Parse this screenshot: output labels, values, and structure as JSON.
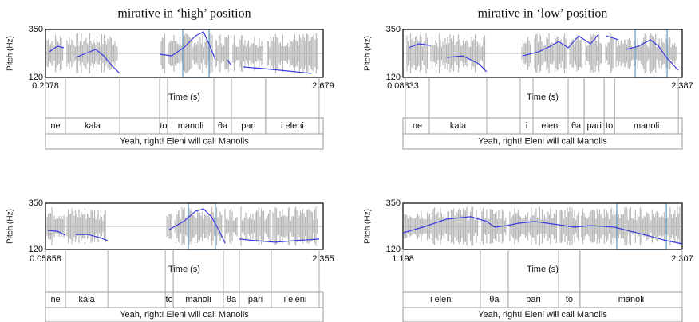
{
  "chart_data": [
    {
      "type": "line",
      "title": "mirative in ‘high’ position",
      "ylabel": "Pitch (Hz)",
      "xlabel": "Time (s)",
      "xlim": [
        0.2078,
        2.679
      ],
      "xticks": [
        0.2078,
        2.679
      ],
      "ylim": [
        120,
        350
      ],
      "yticks": [
        120,
        350
      ],
      "series": [
        {
          "color": "#3a3ae0",
          "x": [
            0.243,
            0.314,
            0.371,
            null,
            0.478,
            0.584,
            0.655,
            0.726,
            0.797,
            0.868,
            null,
            1.223,
            1.33,
            1.436,
            1.543,
            1.614,
            1.663,
            1.72,
            null,
            1.827,
            1.862,
            null,
            1.969,
            2.146,
            2.359,
            2.572
          ],
          "values": [
            243,
            270,
            262,
            null,
            216,
            239,
            254,
            223,
            177,
            139,
            null,
            231,
            223,
            262,
            319,
            338,
            281,
            204,
            null,
            204,
            177,
            null,
            170,
            162,
            151,
            139
          ]
        }
      ],
      "highlight": [
        1.429,
        1.664
      ],
      "words": [
        {
          "label": "ne",
          "start": 0.208,
          "end": 0.385
        },
        {
          "label": "kala",
          "start": 0.385,
          "end": 0.868
        },
        {
          "label": "to",
          "start": 1.223,
          "end": 1.294
        },
        {
          "label": "manoli",
          "start": 1.294,
          "end": 1.706
        },
        {
          "label": "θa",
          "start": 1.706,
          "end": 1.862
        },
        {
          "label": "pari",
          "start": 1.862,
          "end": 2.167
        },
        {
          "label": "i eleni",
          "start": 2.167,
          "end": 2.643
        }
      ],
      "sentence": "Yeah, right! Eleni will call Manolis"
    },
    {
      "type": "line",
      "title": "mirative in ‘low’ position",
      "ylabel": "Pitch (Hz)",
      "xlabel": "Time (s)",
      "xlim": [
        0.08833,
        2.387
      ],
      "xticks": [
        0.08833,
        2.387
      ],
      "ylim": [
        120,
        350
      ],
      "yticks": [
        120,
        350
      ],
      "series": [
        {
          "color": "#3a3ae0",
          "x": [
            0.134,
            0.22,
            0.318,
            null,
            0.45,
            0.581,
            0.712,
            0.778,
            null,
            1.074,
            1.205,
            1.304,
            1.37,
            1.448,
            1.534,
            1.633,
            1.698,
            null,
            1.764,
            1.862,
            null,
            1.928,
            2.027,
            2.125,
            2.191,
            2.257,
            2.355
          ],
          "values": [
            262,
            281,
            273,
            null,
            216,
            223,
            185,
            147,
            null,
            223,
            243,
            270,
            292,
            262,
            319,
            281,
            327,
            null,
            319,
            300,
            null,
            254,
            270,
            300,
            270,
            216,
            154
          ]
        }
      ],
      "highlight": [
        2.0,
        2.263
      ],
      "words": [
        {
          "label": "ne",
          "start": 0.108,
          "end": 0.305
        },
        {
          "label": "kala",
          "start": 0.305,
          "end": 0.778
        },
        {
          "label": "i",
          "start": 1.054,
          "end": 1.159
        },
        {
          "label": "eleni",
          "start": 1.159,
          "end": 1.448
        },
        {
          "label": "θa",
          "start": 1.448,
          "end": 1.58
        },
        {
          "label": "pari",
          "start": 1.58,
          "end": 1.744
        },
        {
          "label": "to",
          "start": 1.744,
          "end": 1.83
        },
        {
          "label": "manoli",
          "start": 1.83,
          "end": 2.355
        }
      ],
      "sentence": "Yeah, right! Eleni will call Manolis"
    },
    {
      "type": "line",
      "ylabel": "Pitch (Hz)",
      "xlabel": "Time (s)",
      "xlim": [
        0.05858,
        2.355
      ],
      "xticks": [
        0.05858,
        2.355
      ],
      "ylim": [
        120,
        350
      ],
      "yticks": [
        120,
        350
      ],
      "series": [
        {
          "color": "#3a3ae0",
          "x": [
            0.078,
            0.158,
            0.223,
            null,
            0.309,
            0.408,
            0.507,
            0.573,
            null,
            1.082,
            1.2,
            1.299,
            1.365,
            1.431,
            1.497,
            1.543,
            null,
            1.662,
            1.794,
            1.959,
            2.124,
            2.322
          ],
          "values": [
            215,
            211,
            191,
            null,
            195,
            195,
            179,
            164,
            null,
            219,
            259,
            310,
            322,
            283,
            211,
            152,
            null,
            172,
            164,
            156,
            164,
            172
          ]
        }
      ],
      "highlight": [
        1.24,
        1.464
      ],
      "words": [
        {
          "label": "ne",
          "start": 0.059,
          "end": 0.224
        },
        {
          "label": "kala",
          "start": 0.224,
          "end": 0.574
        },
        {
          "label": "to",
          "start": 1.049,
          "end": 1.115
        },
        {
          "label": "manoli",
          "start": 1.115,
          "end": 1.53
        },
        {
          "label": "θa",
          "start": 1.53,
          "end": 1.662
        },
        {
          "label": "pari",
          "start": 1.662,
          "end": 1.926
        },
        {
          "label": "i eleni",
          "start": 1.926,
          "end": 2.322
        }
      ],
      "sentence": "Yeah, right! Eleni will call Manolis"
    },
    {
      "type": "line",
      "ylabel": "Pitch (Hz)",
      "xlabel": "Time (s)",
      "xlim": [
        1.198,
        2.307
      ],
      "xticks": [
        1.198,
        2.307
      ],
      "ylim": [
        120,
        350
      ],
      "yticks": [
        120,
        350
      ],
      "series": [
        {
          "color": "#3a3ae0",
          "x": [
            1.198,
            1.277,
            1.372,
            1.467,
            1.531,
            1.562,
            1.61,
            1.658,
            1.721,
            1.816,
            1.879,
            1.943,
            2.038,
            2.101,
            2.165,
            2.244,
            2.307
          ],
          "values": [
            203,
            231,
            271,
            283,
            259,
            231,
            239,
            251,
            259,
            243,
            231,
            239,
            231,
            211,
            191,
            164,
            148
          ]
        }
      ],
      "highlight": [
        2.047,
        2.244
      ],
      "words": [
        {
          "label": "i eleni",
          "start": 1.198,
          "end": 1.505
        },
        {
          "label": "θa",
          "start": 1.505,
          "end": 1.616
        },
        {
          "label": "pari",
          "start": 1.616,
          "end": 1.816
        },
        {
          "label": "to",
          "start": 1.816,
          "end": 1.901
        },
        {
          "label": "manoli",
          "start": 1.901,
          "end": 2.307
        }
      ],
      "sentence": "Yeah, right! Eleni will call Manolis"
    }
  ]
}
